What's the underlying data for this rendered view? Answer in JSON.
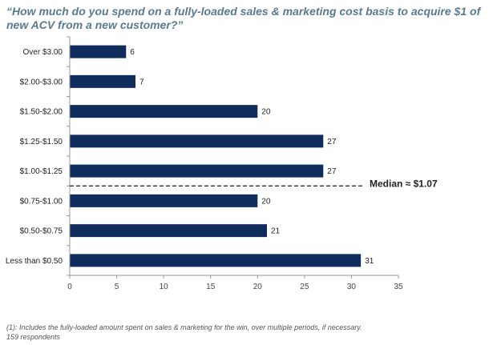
{
  "chart_data": {
    "type": "bar",
    "orientation": "horizontal",
    "title": "“How much do you spend on a fully-loaded sales & marketing cost basis to acquire $1 of new ACV from a new customer?”",
    "categories": [
      "Over $3.00",
      "$2.00-$3.00",
      "$1.50-$2.00",
      "$1.25-$1.50",
      "$1.00-$1.25",
      "$0.75-$1.00",
      "$0.50-$0.75",
      "Less than $0.50"
    ],
    "values": [
      6,
      7,
      20,
      27,
      27,
      20,
      21,
      31
    ],
    "xlim": [
      0,
      35
    ],
    "xticks": [
      0,
      5,
      10,
      15,
      20,
      25,
      30,
      35
    ],
    "bar_color": "#0f2d5c",
    "annotation": {
      "text": "Median ≈ $1.07",
      "after_category": "$1.00-$1.25"
    },
    "grid": false
  },
  "footnote": {
    "line1": "(1): Includes the fully-loaded amount spent on sales & marketing for the win, over multiple periods, if necessary.",
    "line2": "159 respondents"
  }
}
